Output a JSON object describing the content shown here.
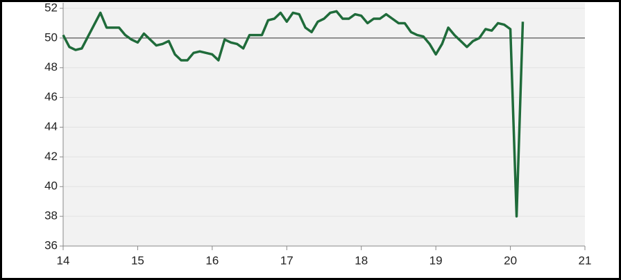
{
  "chart_data": {
    "type": "line",
    "x": [
      14.0,
      14.0833,
      14.1667,
      14.25,
      14.3333,
      14.4167,
      14.5,
      14.5833,
      14.6667,
      14.75,
      14.8333,
      14.9167,
      15.0,
      15.0833,
      15.1667,
      15.25,
      15.3333,
      15.4167,
      15.5,
      15.5833,
      15.6667,
      15.75,
      15.8333,
      15.9167,
      16.0,
      16.0833,
      16.1667,
      16.25,
      16.3333,
      16.4167,
      16.5,
      16.5833,
      16.6667,
      16.75,
      16.8333,
      16.9167,
      17.0,
      17.0833,
      17.1667,
      17.25,
      17.3333,
      17.4167,
      17.5,
      17.5833,
      17.6667,
      17.75,
      17.8333,
      17.9167,
      18.0,
      18.0833,
      18.1667,
      18.25,
      18.3333,
      18.4167,
      18.5,
      18.5833,
      18.6667,
      18.75,
      18.8333,
      18.9167,
      19.0,
      19.0833,
      19.1667,
      19.25,
      19.3333,
      19.4167,
      19.5,
      19.5833,
      19.6667,
      19.75,
      19.8333,
      19.9167,
      20.0,
      20.0833,
      20.1667
    ],
    "series": [
      {
        "color": "#1f6b3a",
        "values": [
          50.2,
          49.4,
          49.2,
          49.3,
          50.1,
          50.9,
          51.7,
          50.7,
          50.7,
          50.7,
          50.2,
          49.9,
          49.7,
          50.3,
          49.9,
          49.5,
          49.6,
          49.8,
          48.9,
          48.5,
          48.5,
          49.0,
          49.1,
          49.0,
          48.9,
          48.5,
          49.9,
          49.7,
          49.6,
          49.3,
          50.2,
          50.2,
          50.2,
          51.2,
          51.3,
          51.7,
          51.1,
          51.7,
          51.6,
          50.7,
          50.4,
          51.1,
          51.3,
          51.7,
          51.8,
          51.3,
          51.3,
          51.6,
          51.5,
          51.0,
          51.3,
          51.3,
          51.6,
          51.3,
          51.0,
          51.0,
          50.4,
          50.2,
          50.1,
          49.6,
          48.9,
          49.6,
          50.7,
          50.2,
          49.8,
          49.4,
          49.8,
          50.0,
          50.6,
          50.5,
          51.0,
          50.9,
          50.6,
          38.0,
          51.1
        ]
      }
    ],
    "xlim": [
      14,
      21
    ],
    "xticks": [
      14,
      15,
      16,
      17,
      18,
      19,
      20,
      21
    ],
    "ylim": [
      36,
      52
    ],
    "yticks": [
      36,
      38,
      40,
      42,
      44,
      46,
      48,
      50,
      52
    ],
    "grid": true,
    "reference_line": 50
  }
}
